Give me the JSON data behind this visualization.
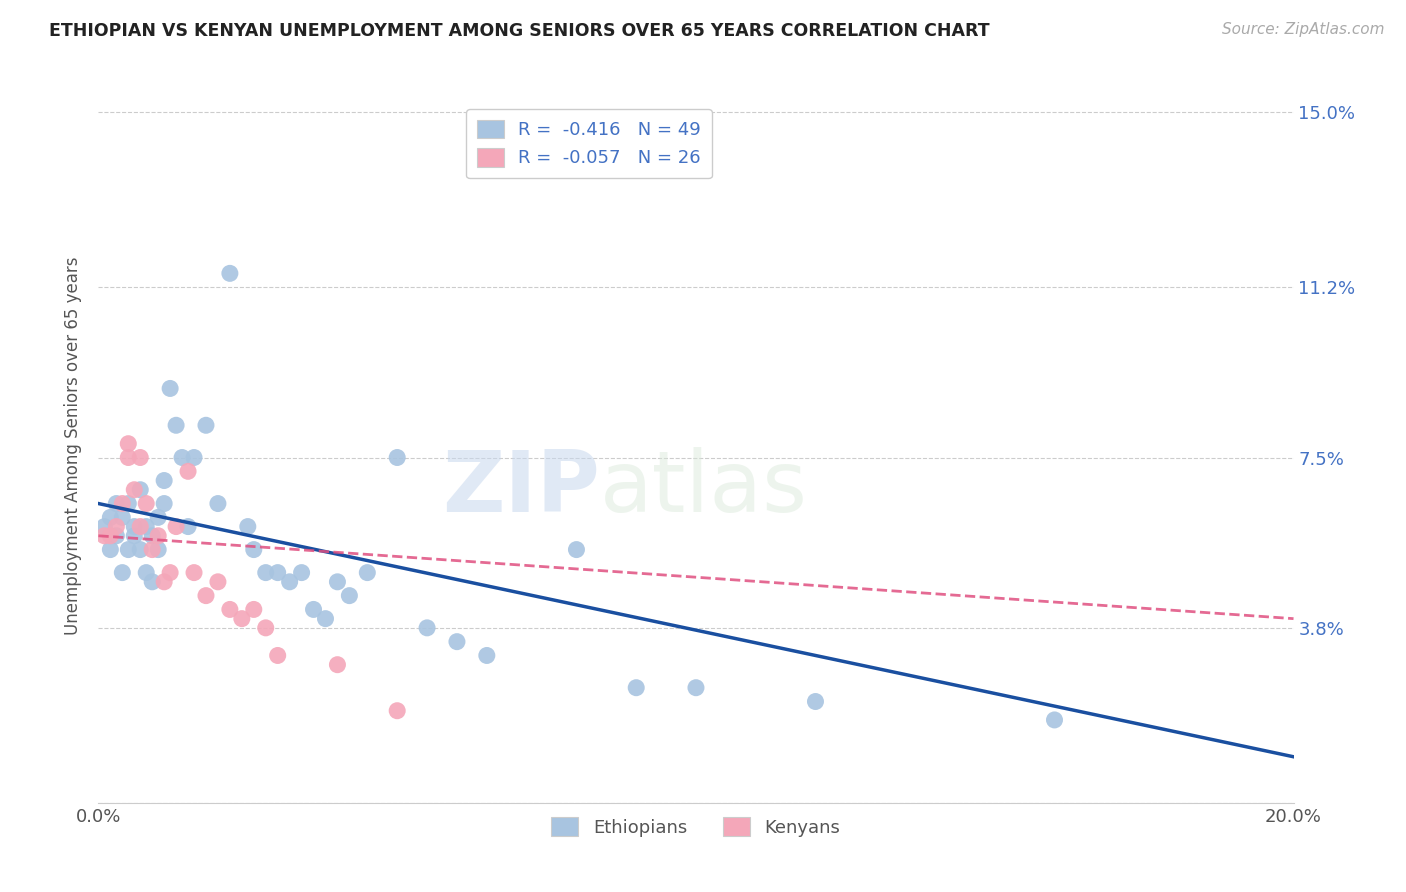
{
  "title": "ETHIOPIAN VS KENYAN UNEMPLOYMENT AMONG SENIORS OVER 65 YEARS CORRELATION CHART",
  "source": "Source: ZipAtlas.com",
  "ylabel": "Unemployment Among Seniors over 65 years",
  "xlim": [
    0.0,
    0.2
  ],
  "ylim": [
    0.0,
    0.155
  ],
  "yticks": [
    0.0,
    0.038,
    0.075,
    0.112,
    0.15
  ],
  "yticklabels": [
    "",
    "3.8%",
    "7.5%",
    "11.2%",
    "15.0%"
  ],
  "ethiopian_R": "-0.416",
  "ethiopian_N": "49",
  "kenyan_R": "-0.057",
  "kenyan_N": "26",
  "ethiopian_color": "#a8c4e0",
  "kenyan_color": "#f4a7b9",
  "line_ethiopian_color": "#1a4fa0",
  "line_kenyan_color": "#e05080",
  "watermark_zip": "ZIP",
  "watermark_atlas": "atlas",
  "ethiopians_x": [
    0.001,
    0.002,
    0.002,
    0.003,
    0.003,
    0.004,
    0.004,
    0.005,
    0.005,
    0.006,
    0.006,
    0.007,
    0.007,
    0.008,
    0.008,
    0.009,
    0.009,
    0.01,
    0.01,
    0.011,
    0.011,
    0.012,
    0.013,
    0.014,
    0.015,
    0.016,
    0.018,
    0.02,
    0.022,
    0.025,
    0.026,
    0.028,
    0.03,
    0.032,
    0.034,
    0.036,
    0.038,
    0.04,
    0.042,
    0.045,
    0.05,
    0.055,
    0.06,
    0.065,
    0.08,
    0.09,
    0.1,
    0.12,
    0.16
  ],
  "ethiopians_y": [
    0.06,
    0.062,
    0.055,
    0.058,
    0.065,
    0.062,
    0.05,
    0.065,
    0.055,
    0.058,
    0.06,
    0.055,
    0.068,
    0.06,
    0.05,
    0.058,
    0.048,
    0.062,
    0.055,
    0.065,
    0.07,
    0.09,
    0.082,
    0.075,
    0.06,
    0.075,
    0.082,
    0.065,
    0.115,
    0.06,
    0.055,
    0.05,
    0.05,
    0.048,
    0.05,
    0.042,
    0.04,
    0.048,
    0.045,
    0.05,
    0.075,
    0.038,
    0.035,
    0.032,
    0.055,
    0.025,
    0.025,
    0.022,
    0.018
  ],
  "kenyans_x": [
    0.001,
    0.002,
    0.003,
    0.004,
    0.005,
    0.005,
    0.006,
    0.007,
    0.007,
    0.008,
    0.009,
    0.01,
    0.011,
    0.012,
    0.013,
    0.015,
    0.016,
    0.018,
    0.02,
    0.022,
    0.024,
    0.026,
    0.028,
    0.03,
    0.04,
    0.05
  ],
  "kenyans_y": [
    0.058,
    0.058,
    0.06,
    0.065,
    0.078,
    0.075,
    0.068,
    0.075,
    0.06,
    0.065,
    0.055,
    0.058,
    0.048,
    0.05,
    0.06,
    0.072,
    0.05,
    0.045,
    0.048,
    0.042,
    0.04,
    0.042,
    0.038,
    0.032,
    0.03,
    0.02
  ],
  "eth_line_x0": 0.0,
  "eth_line_y0": 0.065,
  "eth_line_x1": 0.2,
  "eth_line_y1": 0.01,
  "ken_line_x0": 0.0,
  "ken_line_y0": 0.058,
  "ken_line_x1": 0.2,
  "ken_line_y1": 0.04
}
